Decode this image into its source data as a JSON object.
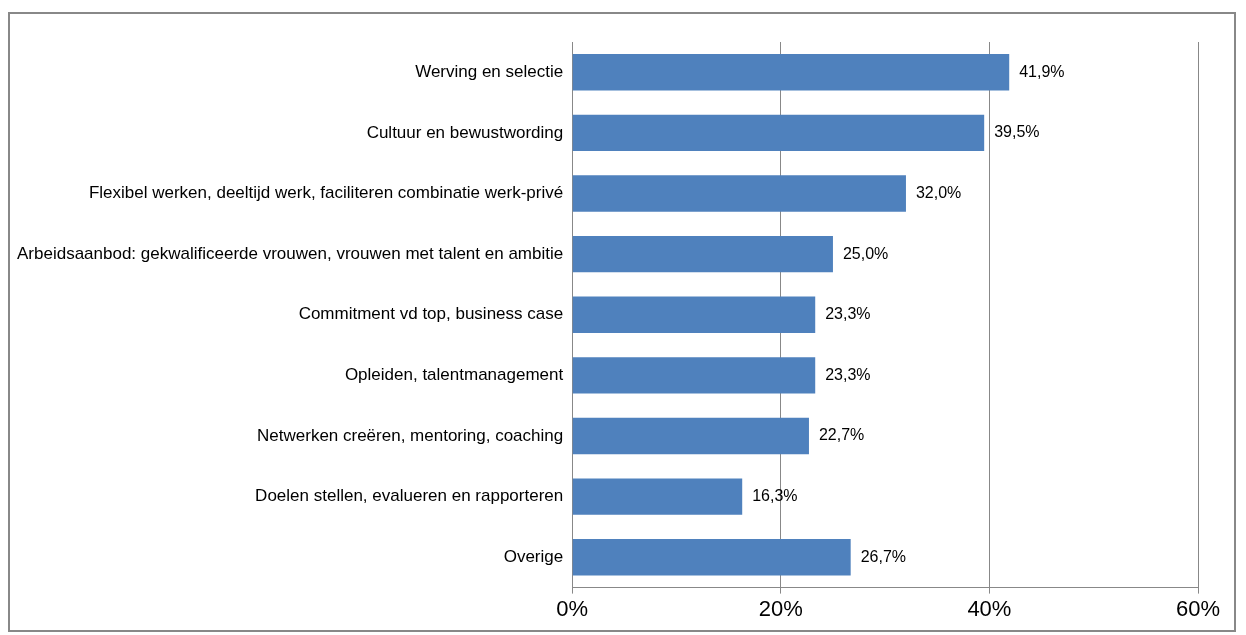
{
  "chart_data": {
    "type": "bar",
    "orientation": "horizontal",
    "categories": [
      "Werving en selectie",
      "Cultuur en bewustwording",
      "Flexibel werken, deeltijd werk, faciliteren combinatie werk-privé",
      "Arbeidsaanbod: gekwalificeerde vrouwen, vrouwen met talent en ambitie",
      "Commitment vd top, business case",
      "Opleiden, talentmanagement",
      "Netwerken creëren, mentoring, coaching",
      "Doelen stellen, evalueren en rapporteren",
      "Overige"
    ],
    "values": [
      41.9,
      39.5,
      32.0,
      25.0,
      23.3,
      23.3,
      22.7,
      16.3,
      26.7
    ],
    "value_labels": [
      "41,9%",
      "39,5%",
      "32,0%",
      "25,0%",
      "23,3%",
      "23,3%",
      "22,7%",
      "16,3%",
      "26,7%"
    ],
    "color": "#4f81bd",
    "xlim": [
      0,
      60
    ],
    "xticks": [
      {
        "value": 0,
        "label": "0%"
      },
      {
        "value": 20,
        "label": "20%"
      },
      {
        "value": 40,
        "label": "40%"
      },
      {
        "value": 60,
        "label": "60%"
      }
    ],
    "grid": "x",
    "legend": false
  }
}
